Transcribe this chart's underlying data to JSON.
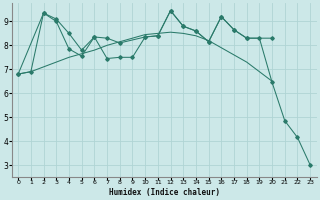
{
  "xlabel": "Humidex (Indice chaleur)",
  "ylabel": "",
  "bg_color": "#cce8e8",
  "grid_color": "#b0d4d4",
  "line_color": "#2a7a6a",
  "xlim": [
    -0.5,
    23.5
  ],
  "ylim": [
    2.5,
    9.75
  ],
  "xticks": [
    0,
    1,
    2,
    3,
    4,
    5,
    6,
    7,
    8,
    9,
    10,
    11,
    12,
    13,
    14,
    15,
    16,
    17,
    18,
    19,
    20,
    21,
    22,
    23
  ],
  "yticks": [
    3,
    4,
    5,
    6,
    7,
    8,
    9
  ],
  "series1_x": [
    0,
    1,
    2,
    3,
    4,
    5,
    6,
    7,
    8,
    9,
    10,
    11,
    12,
    13,
    14,
    15,
    16,
    17,
    18,
    19,
    20,
    21,
    22,
    23
  ],
  "series1_y": [
    6.8,
    6.9,
    9.35,
    9.0,
    7.85,
    7.55,
    8.35,
    7.45,
    7.5,
    7.5,
    8.35,
    8.4,
    9.45,
    8.8,
    8.6,
    8.15,
    9.2,
    8.65,
    8.3,
    8.3,
    6.45,
    4.85,
    4.15,
    3.0
  ],
  "series2_x": [
    0,
    2,
    3,
    4,
    5,
    6,
    7,
    8,
    10,
    11,
    12,
    13,
    14,
    15,
    16,
    17,
    18,
    20
  ],
  "series2_y": [
    6.8,
    9.35,
    9.1,
    8.5,
    7.8,
    8.35,
    8.3,
    8.1,
    8.35,
    8.4,
    9.45,
    8.8,
    8.6,
    8.15,
    9.2,
    8.65,
    8.3,
    8.3
  ],
  "series3_x": [
    0,
    1,
    2,
    3,
    4,
    5,
    6,
    7,
    8,
    9,
    10,
    11,
    12,
    13,
    14,
    15,
    16,
    17,
    18,
    19,
    20
  ],
  "series3_y": [
    6.8,
    6.9,
    7.1,
    7.3,
    7.5,
    7.65,
    7.8,
    8.0,
    8.15,
    8.3,
    8.45,
    8.5,
    8.55,
    8.5,
    8.4,
    8.2,
    7.9,
    7.6,
    7.3,
    6.9,
    6.5
  ]
}
